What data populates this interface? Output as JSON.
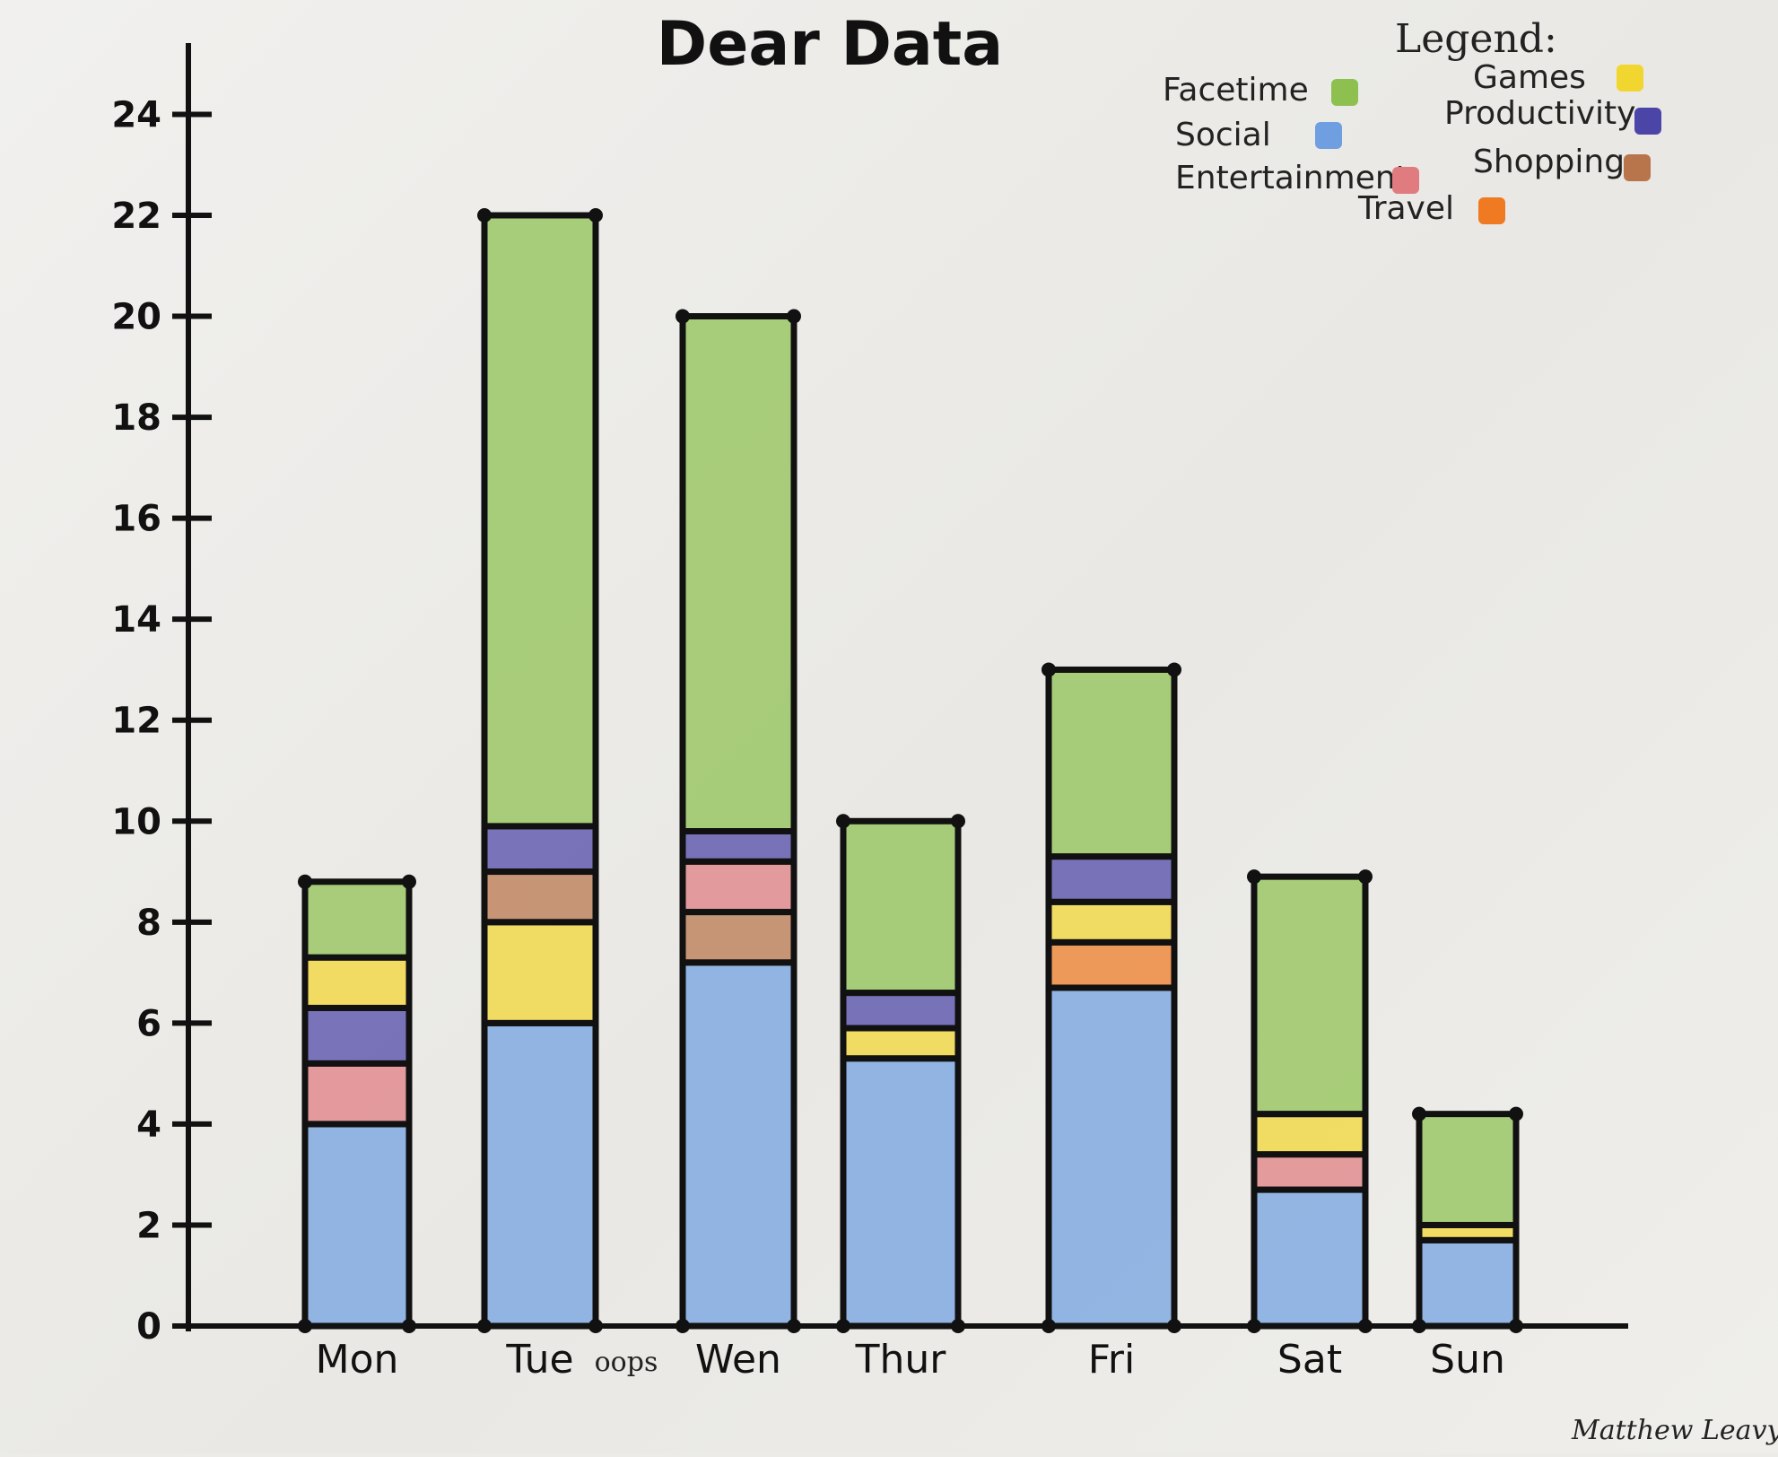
{
  "chart_data": {
    "type": "bar",
    "stacked": true,
    "title": "Dear Data",
    "legend_title": "Legend:",
    "legend_position": "top-right",
    "categories": [
      "Mon",
      "Tue",
      "Wen",
      "Thur",
      "Fri",
      "Sat",
      "Sun"
    ],
    "extra_label": "oops",
    "signature": "Matthew Leavy",
    "y_ticks": [
      0,
      2,
      4,
      6,
      8,
      10,
      12,
      14,
      16,
      18,
      20,
      22,
      24
    ],
    "y_tick_labels": [
      "0",
      "2",
      "4",
      "6",
      "8",
      "10",
      "12",
      "14",
      "16",
      "18",
      "20",
      "22",
      "24"
    ],
    "ylim": [
      0,
      25
    ],
    "grid": false,
    "legend": [
      {
        "name": "Facetime",
        "color": "#8dc04f"
      },
      {
        "name": "Games",
        "color": "#f2d630"
      },
      {
        "name": "Social",
        "color": "#6f9fe0"
      },
      {
        "name": "Productivity",
        "color": "#4c45a8"
      },
      {
        "name": "Entertainment",
        "color": "#e07c80"
      },
      {
        "name": "Shopping",
        "color": "#b8744a"
      },
      {
        "name": "Travel",
        "color": "#ef7a22"
      }
    ],
    "bars": [
      {
        "category": "Mon",
        "segments": [
          {
            "name": "Social",
            "value": 4.0
          },
          {
            "name": "Entertainment",
            "value": 1.2
          },
          {
            "name": "Productivity",
            "value": 1.1
          },
          {
            "name": "Games",
            "value": 1.0
          },
          {
            "name": "Facetime",
            "value": 1.5
          }
        ]
      },
      {
        "category": "Tue",
        "segments": [
          {
            "name": "Social",
            "value": 6.0
          },
          {
            "name": "Games",
            "value": 2.0
          },
          {
            "name": "Shopping",
            "value": 1.0
          },
          {
            "name": "Productivity",
            "value": 0.9
          },
          {
            "name": "Facetime",
            "value": 12.1
          }
        ]
      },
      {
        "category": "Wen",
        "segments": [
          {
            "name": "Social",
            "value": 7.2
          },
          {
            "name": "Shopping",
            "value": 1.0
          },
          {
            "name": "Entertainment",
            "value": 1.0
          },
          {
            "name": "Productivity",
            "value": 0.6
          },
          {
            "name": "Facetime",
            "value": 10.2
          }
        ]
      },
      {
        "category": "Thur",
        "segments": [
          {
            "name": "Social",
            "value": 5.3
          },
          {
            "name": "Games",
            "value": 0.6
          },
          {
            "name": "Productivity",
            "value": 0.7
          },
          {
            "name": "Facetime",
            "value": 3.4
          }
        ]
      },
      {
        "category": "Fri",
        "segments": [
          {
            "name": "Social",
            "value": 6.7
          },
          {
            "name": "Travel",
            "value": 0.9
          },
          {
            "name": "Games",
            "value": 0.8
          },
          {
            "name": "Productivity",
            "value": 0.9
          },
          {
            "name": "Facetime",
            "value": 3.7
          }
        ]
      },
      {
        "category": "Sat",
        "segments": [
          {
            "name": "Social",
            "value": 2.7
          },
          {
            "name": "Entertainment",
            "value": 0.7
          },
          {
            "name": "Games",
            "value": 0.8
          },
          {
            "name": "Facetime",
            "value": 4.7
          }
        ]
      },
      {
        "category": "Sun",
        "segments": [
          {
            "name": "Social",
            "value": 1.7
          },
          {
            "name": "Games",
            "value": 0.3
          },
          {
            "name": "Facetime",
            "value": 2.2
          }
        ]
      }
    ]
  }
}
